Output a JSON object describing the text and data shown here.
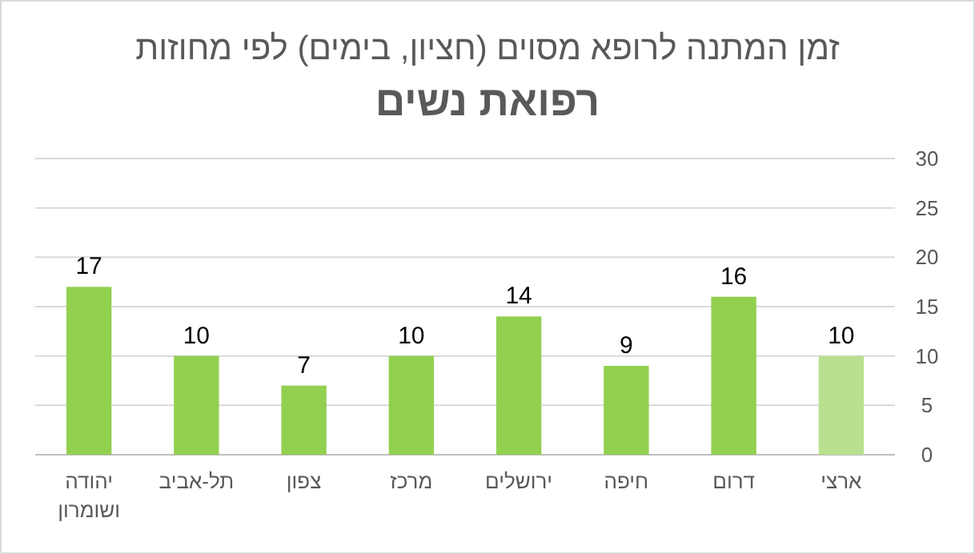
{
  "chart_data": {
    "type": "bar",
    "title": "זמן המתנה לרופא מסוים (חציון, בימים) לפי מחוזות",
    "subtitle": "רפואת נשים",
    "categories": [
      "יהודה ושומרון",
      "תל-אביב",
      "צפון",
      "מרכז",
      "ירושלים",
      "חיפה",
      "דרום",
      "ארצי"
    ],
    "values": [
      17,
      10,
      7,
      10,
      14,
      9,
      16,
      10
    ],
    "colors": [
      "#92d050",
      "#92d050",
      "#92d050",
      "#92d050",
      "#92d050",
      "#92d050",
      "#92d050",
      "#b9e08f"
    ],
    "ylim": [
      0,
      30
    ],
    "yticks": [
      0,
      5,
      10,
      15,
      20,
      25,
      30
    ],
    "grid": "y",
    "data_labels": true
  }
}
